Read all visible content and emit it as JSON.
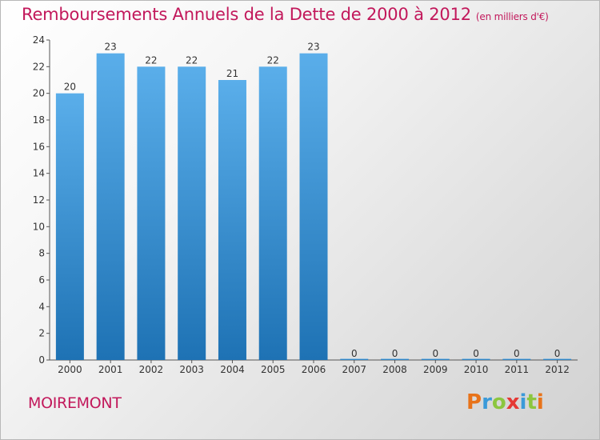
{
  "title": "Remboursements Annuels de la Dette de 2000 à 2012",
  "subtitle": "(en milliers d'€)",
  "commune": "MOIREMONT",
  "logo": {
    "letters": [
      "P",
      "r",
      "o",
      "x",
      "i",
      "t",
      "i"
    ],
    "colors": [
      "#e8731a",
      "#3a9ad9",
      "#8cc63f",
      "#e53935",
      "#3a9ad9",
      "#8cc63f",
      "#e8731a"
    ]
  },
  "colors": {
    "bar_light": "#5aaeea",
    "bar_dark": "#1e72b4",
    "title": "#c2185b",
    "axis": "#555555"
  },
  "chart_data": {
    "type": "bar",
    "categories": [
      "2000",
      "2001",
      "2002",
      "2003",
      "2004",
      "2005",
      "2006",
      "2007",
      "2008",
      "2009",
      "2010",
      "2011",
      "2012"
    ],
    "values": [
      20,
      23,
      22,
      22,
      21,
      22,
      23,
      0,
      0,
      0,
      0,
      0,
      0
    ],
    "ylim": [
      0,
      24
    ],
    "yticks": [
      0,
      2,
      4,
      6,
      8,
      10,
      12,
      14,
      16,
      18,
      20,
      22,
      24
    ],
    "grid": false,
    "data_labels": true
  }
}
